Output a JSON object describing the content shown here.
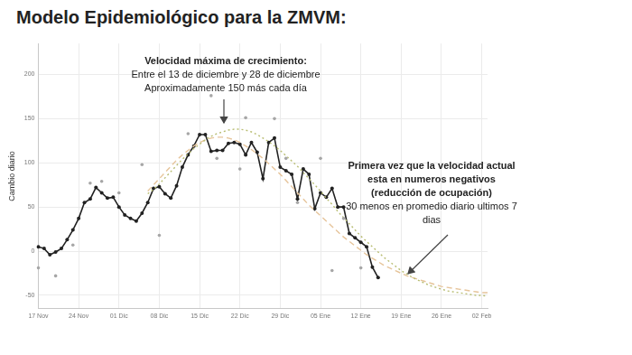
{
  "chart_data": {
    "type": "line",
    "title": "Modelo Epidemiológico para la ZMVM:",
    "y_label": "Cambio diario",
    "annotations": [
      {
        "heading": [
          "Velocidad máxima de crecimiento:"
        ],
        "text": [
          "Entre el 13 de diciembre y 28 de diciembre",
          "Aproximadamente 150 más cada día"
        ]
      },
      {
        "heading": [
          "Primera vez que la velocidad actual",
          "esta en numeros negativos",
          "(reducción de ocupación)"
        ],
        "text": [
          "30 menos en promedio diario ultimos 7 dias"
        ]
      }
    ],
    "categories": [
      "17 Nov",
      null,
      null,
      null,
      null,
      null,
      null,
      "24 Nov",
      null,
      null,
      null,
      null,
      null,
      null,
      "01 Dic",
      null,
      null,
      null,
      null,
      null,
      null,
      "08 Dic",
      null,
      null,
      null,
      null,
      null,
      null,
      "15 Dic",
      null,
      null,
      null,
      null,
      null,
      null,
      "22 Dic",
      null,
      null,
      null,
      null,
      null,
      null,
      "29 Dic",
      null,
      null,
      null,
      null,
      null,
      null,
      "05 Ene",
      null,
      null,
      null,
      null,
      null,
      null,
      "12 Ene",
      null,
      null,
      null,
      null,
      null,
      null,
      "19 Ene",
      null,
      null,
      null,
      null,
      null,
      null,
      "26 Ene",
      null,
      null,
      null,
      null,
      null,
      null,
      "02 Feb",
      null
    ],
    "series": [
      {
        "type": "scatter",
        "color": "#a6a6a6",
        "marker": "circle",
        "values": [
          -19,
          null,
          null,
          -28,
          null,
          null,
          7,
          null,
          null,
          77,
          null,
          79,
          null,
          null,
          66,
          null,
          null,
          null,
          98,
          null,
          null,
          18,
          null,
          null,
          null,
          null,
          133,
          null,
          null,
          null,
          176,
          105,
          null,
          null,
          null,
          93,
          151,
          null,
          null,
          null,
          null,
          150,
          null,
          105,
          null,
          55,
          null,
          null,
          null,
          105,
          null,
          -22,
          null,
          37,
          null,
          null,
          -19,
          null,
          null,
          null,
          null,
          null,
          null,
          null,
          null,
          null,
          null,
          null,
          null,
          null,
          null,
          null,
          null,
          null,
          null,
          null,
          null,
          null,
          null
        ]
      },
      {
        "type": "line",
        "color": "#b8bd72",
        "line_style": "dotted",
        "marker": "none",
        "values": [
          null,
          null,
          null,
          null,
          null,
          null,
          null,
          null,
          null,
          null,
          null,
          null,
          null,
          null,
          null,
          null,
          null,
          null,
          null,
          65,
          70,
          76,
          83,
          90,
          97,
          104,
          110,
          116,
          121,
          126,
          130,
          133,
          135,
          137,
          138,
          138,
          137,
          135,
          132,
          128,
          124,
          119,
          114,
          108,
          102,
          96,
          89,
          82,
          75,
          68,
          60,
          53,
          45,
          38,
          31,
          24,
          17,
          11,
          5,
          -1,
          -7,
          -12,
          -17,
          -22,
          -26,
          -30,
          -33,
          -36,
          -39,
          -41,
          -43,
          -45,
          -46,
          -47,
          -48,
          -49,
          -50,
          -50,
          -51
        ]
      },
      {
        "type": "line",
        "color": "#e6c49a",
        "line_style": "dashed",
        "marker": "none",
        "values": [
          null,
          null,
          null,
          null,
          null,
          null,
          null,
          null,
          null,
          null,
          null,
          null,
          null,
          null,
          null,
          null,
          null,
          null,
          null,
          68,
          75,
          82,
          89,
          96,
          103,
          109,
          114,
          119,
          123,
          126,
          128,
          129,
          129,
          128,
          126,
          123,
          119,
          115,
          110,
          105,
          99,
          93,
          87,
          80,
          73,
          66,
          59,
          52,
          46,
          40,
          34,
          28,
          22,
          16,
          11,
          6,
          1,
          -4,
          -8,
          -12,
          -16,
          -19,
          -22,
          -25,
          -28,
          -30,
          -32,
          -34,
          -36,
          -38,
          -40,
          -41,
          -42,
          -43,
          -44,
          -45,
          -46,
          -47,
          -47
        ]
      },
      {
        "type": "line",
        "color": "#222222",
        "line_style": "solid",
        "marker": "circle",
        "values": [
          5,
          3,
          -4,
          -1,
          3,
          13,
          24,
          37,
          55,
          59,
          72,
          66,
          60,
          61,
          50,
          41,
          37,
          34,
          43,
          55,
          71,
          73,
          65,
          60,
          74,
          95,
          109,
          119,
          132,
          132,
          113,
          114,
          114,
          122,
          123,
          121,
          109,
          123,
          112,
          82,
          123,
          128,
          95,
          91,
          87,
          59,
          93,
          87,
          48,
          66,
          61,
          71,
          50,
          50,
          20,
          15,
          10,
          5,
          -18,
          -30,
          null,
          null,
          null,
          null,
          null,
          null,
          null,
          null,
          null,
          null,
          null,
          null,
          null,
          null,
          null,
          null,
          null,
          null,
          null
        ]
      }
    ],
    "ylim": [
      -65,
      235
    ],
    "yticks": [
      -50,
      0,
      50,
      100,
      150,
      200
    ],
    "grid": true
  }
}
